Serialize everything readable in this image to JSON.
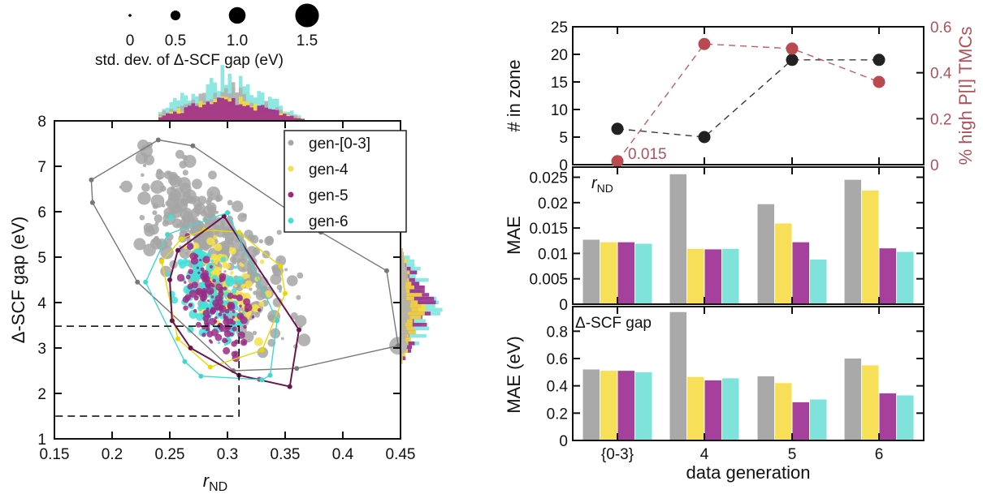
{
  "chart_data": [
    {
      "type": "scatter",
      "id": "left",
      "xlabel": "r",
      "xlabel_sub": "ND",
      "ylabel": "Δ-SCF gap (eV)",
      "xlim": [
        0.15,
        0.45
      ],
      "ylim": [
        1,
        8
      ],
      "x_ticks": [
        "0.15",
        "0.2",
        "0.25",
        "0.3",
        "0.35",
        "0.4",
        "0.45"
      ],
      "x_tick_values": [
        0.15,
        0.2,
        0.25,
        0.3,
        0.35,
        0.4,
        0.45
      ],
      "y_ticks": [
        "1",
        "2",
        "3",
        "4",
        "5",
        "6",
        "7",
        "8"
      ],
      "y_tick_values": [
        1,
        2,
        3,
        4,
        5,
        6,
        7,
        8
      ],
      "size_legend": {
        "title": "std. dev. of Δ-SCF gap (eV)",
        "labels": [
          "0",
          "0.5",
          "1.0",
          "1.5"
        ],
        "values": [
          0,
          0.5,
          1.0,
          1.5
        ]
      },
      "legend": {
        "placement": "top-right",
        "entries": [
          {
            "label": "gen-[0-3]",
            "color": "#a6a6a6"
          },
          {
            "label": "gen-4",
            "color": "#f5e04a"
          },
          {
            "label": "gen-5",
            "color": "#9b2a86"
          },
          {
            "label": "gen-6",
            "color": "#3fe0d8"
          }
        ]
      },
      "hulls": [
        {
          "name": "gen-[0-3]",
          "color": "#777777",
          "points": [
            [
              0.182,
              6.7
            ],
            [
              0.183,
              6.2
            ],
            [
              0.222,
              4.45
            ],
            [
              0.305,
              2.5
            ],
            [
              0.36,
              2.55
            ],
            [
              0.448,
              3.05
            ],
            [
              0.438,
              4.7
            ],
            [
              0.381,
              5.55
            ],
            [
              0.27,
              7.45
            ],
            [
              0.24,
              7.58
            ]
          ]
        },
        {
          "name": "gen-4",
          "color": "#e8d800",
          "points": [
            [
              0.243,
              4.9
            ],
            [
              0.257,
              3.2
            ],
            [
              0.285,
              2.58
            ],
            [
              0.33,
              2.95
            ],
            [
              0.35,
              4.2
            ],
            [
              0.346,
              4.8
            ],
            [
              0.31,
              5.55
            ],
            [
              0.28,
              5.6
            ],
            [
              0.26,
              5.4
            ]
          ]
        },
        {
          "name": "gen-5",
          "color": "#6a1450",
          "points": [
            [
              0.25,
              4.5
            ],
            [
              0.252,
              3.6
            ],
            [
              0.268,
              3.0
            ],
            [
              0.31,
              2.4
            ],
            [
              0.354,
              2.15
            ],
            [
              0.362,
              3.4
            ],
            [
              0.297,
              5.9
            ],
            [
              0.257,
              5.15
            ]
          ]
        },
        {
          "name": "gen-6",
          "color": "#3fd8d0",
          "points": [
            [
              0.229,
              4.45
            ],
            [
              0.263,
              2.7
            ],
            [
              0.277,
              2.38
            ],
            [
              0.33,
              2.3
            ],
            [
              0.337,
              2.4
            ],
            [
              0.343,
              3.6
            ],
            [
              0.3,
              5.98
            ],
            [
              0.248,
              5.5
            ]
          ]
        }
      ],
      "zone_box": {
        "x": [
          0.15,
          0.31
        ],
        "y": [
          1.5,
          3.48
        ],
        "style": "dashed"
      }
    },
    {
      "type": "line",
      "id": "top-right",
      "categories": [
        "{0-3}",
        "4",
        "5",
        "6"
      ],
      "ylabel": "# in zone",
      "ylim": [
        0,
        25
      ],
      "y_ticks": [
        "0",
        "5",
        "10",
        "15",
        "20",
        "25"
      ],
      "y_tick_values": [
        0,
        5,
        10,
        15,
        20,
        25
      ],
      "y2label": "% high P[I] TMCs",
      "y2lim": [
        0,
        0.6
      ],
      "y2_ticks": [
        "0",
        "0.2",
        "0.4",
        "0.6"
      ],
      "y2_tick_values": [
        0,
        0.2,
        0.4,
        0.6
      ],
      "series": [
        {
          "name": "# in zone",
          "axis": "left",
          "color": "#222222",
          "values": [
            6.5,
            5,
            19,
            19
          ]
        },
        {
          "name": "% high P[I] TMCs",
          "axis": "right",
          "color": "#b84a50",
          "values": [
            0.015,
            0.525,
            0.505,
            0.36
          ]
        }
      ],
      "annotations": [
        {
          "text": "0.015",
          "category": "{0-3}",
          "color": "#b84a50"
        }
      ]
    },
    {
      "type": "bar",
      "id": "middle-right",
      "panel_label": "r",
      "panel_label_sub": "ND",
      "categories": [
        "{0-3}",
        "4",
        "5",
        "6"
      ],
      "ylabel": "MAE",
      "ylim": [
        0,
        0.027
      ],
      "y_ticks": [
        "0",
        "0.005",
        "0.01",
        "0.015",
        "0.02",
        "0.025"
      ],
      "y_tick_values": [
        0,
        0.005,
        0.01,
        0.015,
        0.02,
        0.025
      ],
      "series": [
        {
          "name": "gen-[0-3]",
          "color": "#a9a9a9",
          "values": [
            0.0127,
            0.0256,
            0.0197,
            0.0245
          ]
        },
        {
          "name": "gen-4",
          "color": "#f7df57",
          "values": [
            0.0122,
            0.0109,
            0.0159,
            0.0224
          ]
        },
        {
          "name": "gen-5",
          "color": "#a5409c",
          "values": [
            0.0122,
            0.0108,
            0.0122,
            0.011
          ]
        },
        {
          "name": "gen-6",
          "color": "#7fe3dc",
          "values": [
            0.0119,
            0.0109,
            0.0088,
            0.0103
          ]
        }
      ]
    },
    {
      "type": "bar",
      "id": "bottom-right",
      "panel_label": "Δ-SCF gap",
      "categories": [
        "{0-3}",
        "4",
        "5",
        "6"
      ],
      "xlabel": "data generation",
      "ylabel": "MAE (eV)",
      "ylim": [
        0,
        0.98
      ],
      "y_ticks": [
        "0",
        "0.2",
        "0.4",
        "0.6",
        "0.8"
      ],
      "y_tick_values": [
        0,
        0.2,
        0.4,
        0.6,
        0.8
      ],
      "series": [
        {
          "name": "gen-[0-3]",
          "color": "#a9a9a9",
          "values": [
            0.52,
            0.94,
            0.47,
            0.6
          ]
        },
        {
          "name": "gen-4",
          "color": "#f7df57",
          "values": [
            0.51,
            0.465,
            0.42,
            0.55
          ]
        },
        {
          "name": "gen-5",
          "color": "#a5409c",
          "values": [
            0.51,
            0.44,
            0.28,
            0.345
          ]
        },
        {
          "name": "gen-6",
          "color": "#7fe3dc",
          "values": [
            0.5,
            0.455,
            0.3,
            0.33
          ]
        }
      ]
    }
  ]
}
